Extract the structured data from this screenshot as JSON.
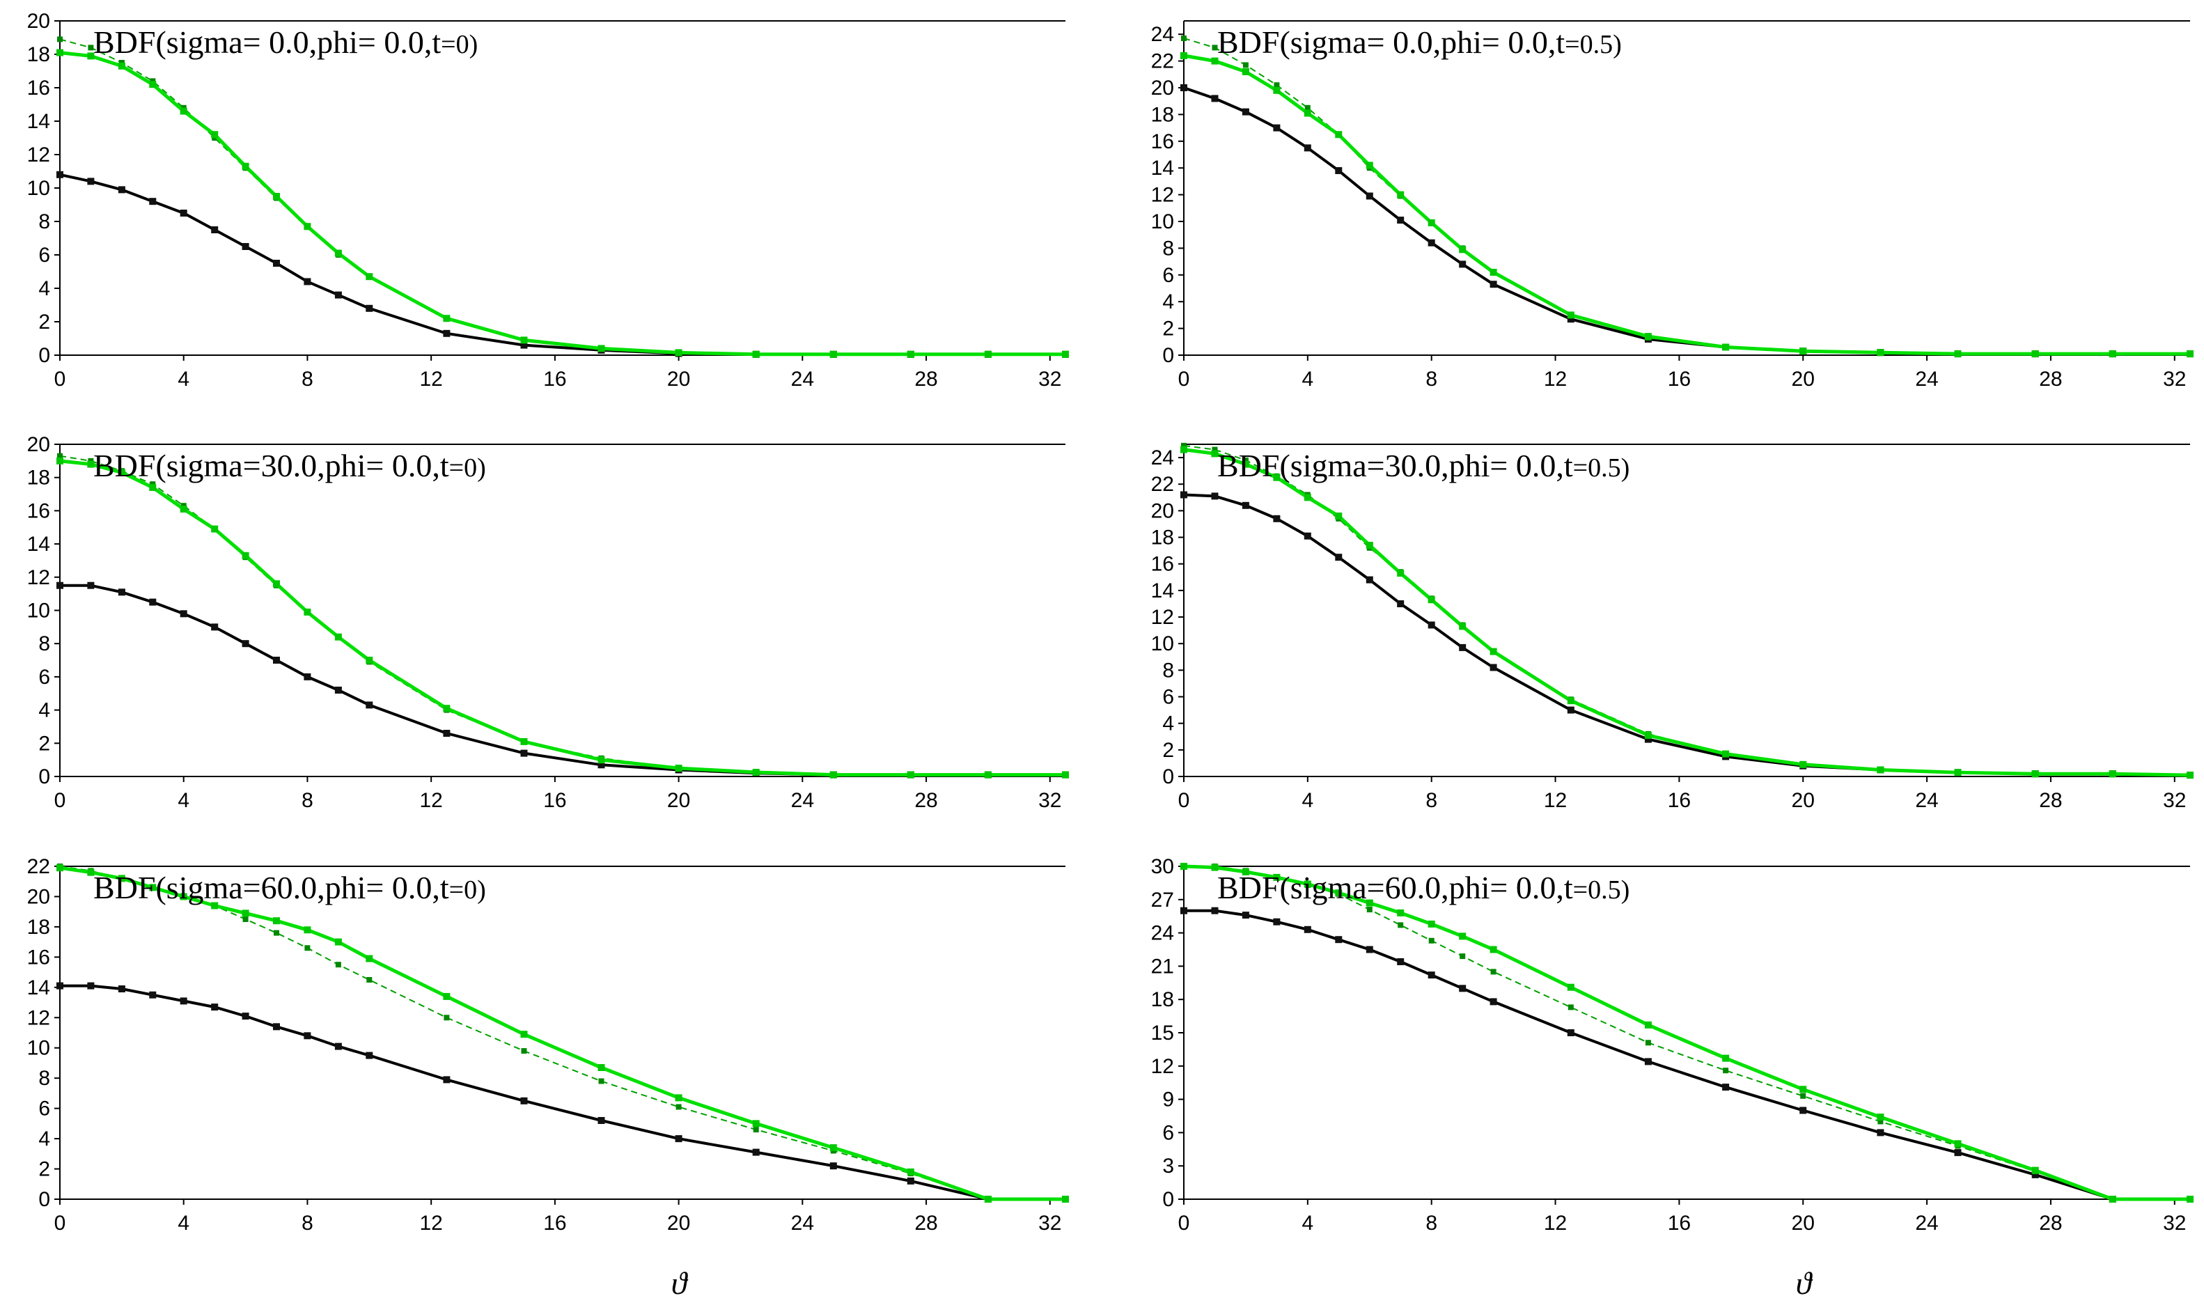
{
  "figure": {
    "xlabel": "ϑ"
  },
  "styles": {
    "series_colors": [
      "#000000",
      "#00e000",
      "#00a000"
    ]
  },
  "chart_data": [
    {
      "type": "line",
      "title_main": "BDF(sigma= 0.0,phi= 0.0,t",
      "title_tail": "=0)",
      "xlim": [
        0,
        32.5
      ],
      "ylim": [
        0,
        20
      ],
      "xticks": [
        "0",
        "4",
        "8",
        "12",
        "16",
        "20",
        "24",
        "28",
        "32"
      ],
      "yticks": [
        "0",
        "2",
        "4",
        "6",
        "8",
        "10",
        "12",
        "14",
        "16",
        "18",
        "20"
      ],
      "x": [
        0,
        1,
        2,
        3,
        4,
        5,
        6,
        7,
        8,
        9,
        10,
        12.5,
        15,
        17.5,
        20,
        22.5,
        25,
        27.5,
        30,
        32.5
      ],
      "series": [
        {
          "name": "black",
          "values": [
            10.8,
            10.4,
            9.9,
            9.2,
            8.5,
            7.5,
            6.5,
            5.5,
            4.4,
            3.6,
            2.8,
            1.3,
            0.6,
            0.3,
            0.1,
            0.05,
            0.05,
            0.05,
            0.05,
            0.05
          ]
        },
        {
          "name": "green",
          "values": [
            18.1,
            17.9,
            17.3,
            16.2,
            14.6,
            13.2,
            11.3,
            9.5,
            7.7,
            6.1,
            4.7,
            2.2,
            0.9,
            0.4,
            0.15,
            0.05,
            0.05,
            0.05,
            0.05,
            0.05
          ]
        },
        {
          "name": "green-dashed",
          "values": [
            18.9,
            18.4,
            17.5,
            16.4,
            14.8,
            13.0,
            11.2,
            9.4,
            7.7,
            6.0,
            4.7,
            2.2,
            0.9,
            0.4,
            0.15,
            0.05,
            0.05,
            0.05,
            0.05,
            0.05
          ]
        }
      ]
    },
    {
      "type": "line",
      "title_main": "BDF(sigma= 0.0,phi= 0.0,t",
      "title_tail": "=0.5)",
      "xlim": [
        0,
        32.5
      ],
      "ylim": [
        0,
        25
      ],
      "xticks": [
        "0",
        "4",
        "8",
        "12",
        "16",
        "20",
        "24",
        "28",
        "32"
      ],
      "yticks": [
        "0",
        "2",
        "4",
        "6",
        "8",
        "10",
        "12",
        "14",
        "16",
        "18",
        "20",
        "22",
        "24"
      ],
      "x": [
        0,
        1,
        2,
        3,
        4,
        5,
        6,
        7,
        8,
        9,
        10,
        12.5,
        15,
        17.5,
        20,
        22.5,
        25,
        27.5,
        30,
        32.5
      ],
      "series": [
        {
          "name": "black",
          "values": [
            20.0,
            19.2,
            18.2,
            17.0,
            15.5,
            13.8,
            11.9,
            10.1,
            8.4,
            6.8,
            5.3,
            2.7,
            1.2,
            0.6,
            0.3,
            0.2,
            0.1,
            0.1,
            0.1,
            0.1
          ]
        },
        {
          "name": "green",
          "values": [
            22.4,
            22.0,
            21.2,
            19.8,
            18.1,
            16.5,
            14.2,
            12.0,
            9.9,
            7.9,
            6.2,
            3.0,
            1.4,
            0.6,
            0.3,
            0.2,
            0.1,
            0.1,
            0.1,
            0.1
          ]
        },
        {
          "name": "green-dashed",
          "values": [
            23.7,
            23.0,
            21.7,
            20.2,
            18.5,
            16.5,
            14.0,
            11.9,
            9.9,
            8.0,
            6.2,
            3.0,
            1.3,
            0.6,
            0.3,
            0.2,
            0.1,
            0.1,
            0.1,
            0.1
          ]
        }
      ]
    },
    {
      "type": "line",
      "title_main": "BDF(sigma=30.0,phi= 0.0,t",
      "title_tail": "=0)",
      "xlim": [
        0,
        32.5
      ],
      "ylim": [
        0,
        20
      ],
      "xticks": [
        "0",
        "4",
        "8",
        "12",
        "16",
        "20",
        "24",
        "28",
        "32"
      ],
      "yticks": [
        "0",
        "2",
        "4",
        "6",
        "8",
        "10",
        "12",
        "14",
        "16",
        "18",
        "20"
      ],
      "x": [
        0,
        1,
        2,
        3,
        4,
        5,
        6,
        7,
        8,
        9,
        10,
        12.5,
        15,
        17.5,
        20,
        22.5,
        25,
        27.5,
        30,
        32.5
      ],
      "series": [
        {
          "name": "black",
          "values": [
            11.5,
            11.5,
            11.1,
            10.5,
            9.8,
            9.0,
            8.0,
            7.0,
            6.0,
            5.2,
            4.3,
            2.6,
            1.4,
            0.7,
            0.4,
            0.2,
            0.1,
            0.1,
            0.1,
            0.1
          ]
        },
        {
          "name": "green",
          "values": [
            19.0,
            18.8,
            18.3,
            17.4,
            16.1,
            14.9,
            13.3,
            11.6,
            9.9,
            8.4,
            7.0,
            4.1,
            2.1,
            1.0,
            0.5,
            0.25,
            0.1,
            0.1,
            0.1,
            0.1
          ]
        },
        {
          "name": "green-dashed",
          "values": [
            19.3,
            19.0,
            18.4,
            17.6,
            16.3,
            14.9,
            13.2,
            11.5,
            9.9,
            8.4,
            6.9,
            4.0,
            2.1,
            1.1,
            0.5,
            0.25,
            0.1,
            0.1,
            0.1,
            0.1
          ]
        }
      ]
    },
    {
      "type": "line",
      "title_main": "BDF(sigma=30.0,phi= 0.0,t",
      "title_tail": "=0.5)",
      "xlim": [
        0,
        32.5
      ],
      "ylim": [
        0,
        25
      ],
      "xticks": [
        "0",
        "4",
        "8",
        "12",
        "16",
        "20",
        "24",
        "28",
        "32"
      ],
      "yticks": [
        "0",
        "2",
        "4",
        "6",
        "8",
        "10",
        "12",
        "14",
        "16",
        "18",
        "20",
        "22",
        "24"
      ],
      "x": [
        0,
        1,
        2,
        3,
        4,
        5,
        6,
        7,
        8,
        9,
        10,
        12.5,
        15,
        17.5,
        20,
        22.5,
        25,
        27.5,
        30,
        32.5
      ],
      "series": [
        {
          "name": "black",
          "values": [
            21.2,
            21.1,
            20.4,
            19.4,
            18.1,
            16.5,
            14.8,
            13.0,
            11.4,
            9.7,
            8.2,
            5.0,
            2.8,
            1.5,
            0.8,
            0.5,
            0.3,
            0.2,
            0.2,
            0.1
          ]
        },
        {
          "name": "green",
          "values": [
            24.6,
            24.3,
            23.5,
            22.5,
            21.0,
            19.6,
            17.4,
            15.3,
            13.3,
            11.3,
            9.4,
            5.7,
            3.1,
            1.7,
            0.9,
            0.5,
            0.3,
            0.2,
            0.2,
            0.1
          ]
        },
        {
          "name": "green-dashed",
          "values": [
            24.9,
            24.6,
            23.8,
            22.6,
            21.2,
            19.4,
            17.2,
            15.4,
            13.4,
            11.4,
            9.4,
            5.8,
            3.2,
            1.7,
            0.9,
            0.5,
            0.3,
            0.2,
            0.2,
            0.1
          ]
        }
      ]
    },
    {
      "type": "line",
      "title_main": "BDF(sigma=60.0,phi= 0.0,t",
      "title_tail": "=0)",
      "xlim": [
        0,
        32.5
      ],
      "ylim": [
        0,
        22
      ],
      "xticks": [
        "0",
        "4",
        "8",
        "12",
        "16",
        "20",
        "24",
        "28",
        "32"
      ],
      "yticks": [
        "0",
        "2",
        "4",
        "6",
        "8",
        "10",
        "12",
        "14",
        "16",
        "18",
        "20",
        "22"
      ],
      "x": [
        0,
        1,
        2,
        3,
        4,
        5,
        6,
        7,
        8,
        9,
        10,
        12.5,
        15,
        17.5,
        20,
        22.5,
        25,
        27.5,
        30,
        32.5
      ],
      "series": [
        {
          "name": "black",
          "values": [
            14.1,
            14.1,
            13.9,
            13.5,
            13.1,
            12.7,
            12.1,
            11.4,
            10.8,
            10.1,
            9.5,
            7.9,
            6.5,
            5.2,
            4.0,
            3.1,
            2.2,
            1.2,
            0.0,
            0.0
          ]
        },
        {
          "name": "green",
          "values": [
            21.9,
            21.6,
            21.2,
            20.6,
            20.0,
            19.4,
            18.9,
            18.4,
            17.8,
            17.0,
            15.9,
            13.4,
            10.9,
            8.7,
            6.7,
            5.0,
            3.4,
            1.8,
            0.0,
            0.0
          ]
        },
        {
          "name": "green-dashed",
          "values": [
            22.0,
            21.7,
            21.2,
            20.6,
            20.0,
            19.4,
            18.5,
            17.6,
            16.6,
            15.5,
            14.5,
            12.0,
            9.8,
            7.8,
            6.1,
            4.6,
            3.2,
            1.7,
            0.0,
            0.0
          ]
        }
      ]
    },
    {
      "type": "line",
      "title_main": "BDF(sigma=60.0,phi= 0.0,t",
      "title_tail": "=0.5)",
      "xlim": [
        0,
        32.5
      ],
      "ylim": [
        0,
        30
      ],
      "xticks": [
        "0",
        "4",
        "8",
        "12",
        "16",
        "20",
        "24",
        "28",
        "32"
      ],
      "yticks": [
        "0",
        "3",
        "6",
        "9",
        "12",
        "15",
        "18",
        "21",
        "24",
        "27",
        "30"
      ],
      "x": [
        0,
        1,
        2,
        3,
        4,
        5,
        6,
        7,
        8,
        9,
        10,
        12.5,
        15,
        17.5,
        20,
        22.5,
        25,
        27.5,
        30,
        32.5
      ],
      "series": [
        {
          "name": "black",
          "values": [
            26.0,
            26.0,
            25.6,
            25.0,
            24.3,
            23.4,
            22.5,
            21.4,
            20.2,
            19.0,
            17.8,
            15.0,
            12.4,
            10.1,
            8.0,
            6.0,
            4.2,
            2.2,
            0.0,
            0.0
          ]
        },
        {
          "name": "green",
          "values": [
            30.0,
            29.9,
            29.5,
            29.0,
            28.4,
            27.6,
            26.7,
            25.8,
            24.8,
            23.7,
            22.5,
            19.1,
            15.7,
            12.7,
            9.9,
            7.4,
            5.0,
            2.6,
            0.0,
            0.0
          ]
        },
        {
          "name": "green-dashed",
          "values": [
            30.0,
            30.0,
            29.6,
            29.0,
            28.3,
            27.5,
            26.1,
            24.7,
            23.3,
            21.9,
            20.5,
            17.3,
            14.1,
            11.6,
            9.3,
            7.0,
            4.8,
            2.5,
            0.0,
            0.0
          ]
        }
      ]
    }
  ]
}
